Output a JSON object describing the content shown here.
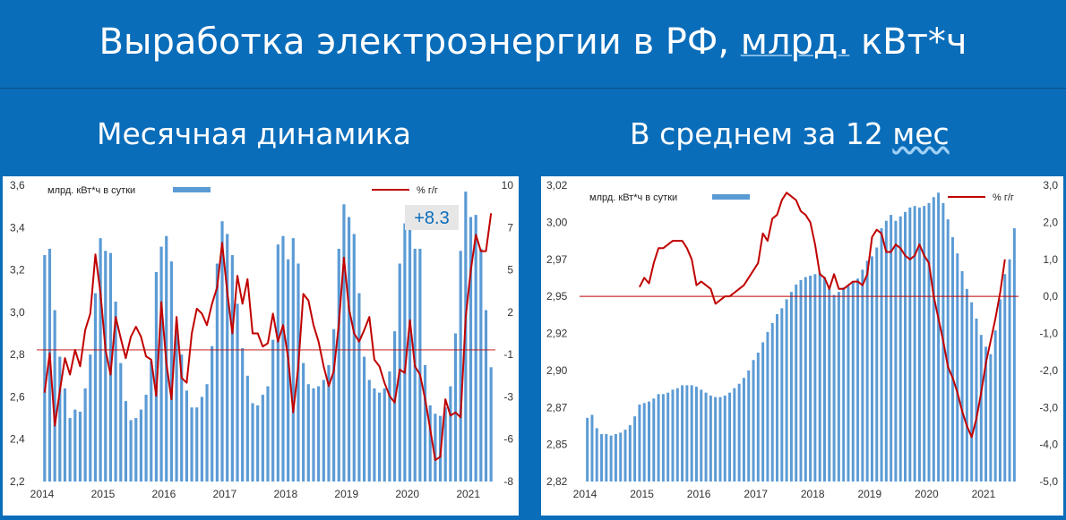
{
  "header": {
    "title_pre": "Выработка электроэнергии в РФ, ",
    "title_underlined": "млрд.",
    "title_post": " кВт*ч"
  },
  "panels": {
    "left_title": "Месячная динамика",
    "right_title_pre": "В среднем за 12 ",
    "right_title_wavy": "мес"
  },
  "colors": {
    "bars": "#5b9bd5",
    "line": "#c00000",
    "zero_line": "#c00000",
    "background": "#0a6dba",
    "badge": "#0a6dba"
  },
  "chart_data": [
    {
      "type": "bar",
      "title": "Месячная динамика",
      "badge": "+8.3",
      "x_tick_labels": [
        "2014",
        "2015",
        "2016",
        "2017",
        "2018",
        "2019",
        "2020",
        "2021"
      ],
      "y_left_ticks": [
        "3,6",
        "3,4",
        "3,2",
        "3,0",
        "2,8",
        "2,6",
        "2,4",
        "2,2"
      ],
      "y_right_ticks": [
        "10",
        "7",
        "5",
        "2",
        "-1",
        "-3",
        "-6",
        "-8"
      ],
      "ylim_left": [
        2.2,
        3.6
      ],
      "ylim_right": [
        -8,
        10
      ],
      "grid": false,
      "legend": "top",
      "series": [
        {
          "name": "млрд. кВт*ч в сутки",
          "kind": "bar",
          "axis": "left",
          "values": [
            3.27,
            3.3,
            3.01,
            2.79,
            2.64,
            2.5,
            2.54,
            2.53,
            2.64,
            2.8,
            3.09,
            3.35,
            3.29,
            3.28,
            3.05,
            2.76,
            2.58,
            2.49,
            2.5,
            2.54,
            2.61,
            2.77,
            3.19,
            3.31,
            3.36,
            3.24,
            2.91,
            2.8,
            2.63,
            2.55,
            2.55,
            2.6,
            2.66,
            2.84,
            3.23,
            3.43,
            3.37,
            3.27,
            3.04,
            2.83,
            2.7,
            2.57,
            2.56,
            2.61,
            2.65,
            2.87,
            3.32,
            3.36,
            3.25,
            3.35,
            3.23,
            2.76,
            2.66,
            2.64,
            2.65,
            2.68,
            2.75,
            2.92,
            3.3,
            3.51,
            3.45,
            3.37,
            3.09,
            2.79,
            2.68,
            2.64,
            2.62,
            2.64,
            2.72,
            2.91,
            3.23,
            3.42,
            3.4,
            3.3,
            3.3,
            2.75,
            2.56,
            2.52,
            2.51,
            2.55,
            2.65,
            2.9,
            3.29,
            3.57,
            3.45,
            3.46,
            3.3,
            3.01,
            2.74
          ]
        },
        {
          "name": "% г/г",
          "kind": "line",
          "axis": "right",
          "values": [
            -2.6,
            -0.2,
            -4.6,
            -2.5,
            -0.5,
            -1.5,
            0.0,
            -1.0,
            1.2,
            2.2,
            5.8,
            3.5,
            0.0,
            -1.5,
            2.0,
            0.7,
            -0.5,
            0.8,
            1.4,
            0.8,
            -0.4,
            -0.6,
            -2.8,
            2.9,
            -0.8,
            -3.0,
            2.0,
            -1.7,
            -2.0,
            1.0,
            2.5,
            2.2,
            1.5,
            2.8,
            3.8,
            6.5,
            3.5,
            1.0,
            4.5,
            2.8,
            4.3,
            1.0,
            1.0,
            0.2,
            0.4,
            2.2,
            0.5,
            1.5,
            -0.5,
            -3.8,
            -1.0,
            3.4,
            3.0,
            1.5,
            0.5,
            -1.0,
            -2.2,
            -1.3,
            1.6,
            5.6,
            2.5,
            1.0,
            0.5,
            1.2,
            2.0,
            -0.6,
            -1.0,
            -2.0,
            -2.8,
            -3.2,
            -1.2,
            -1.4,
            1.8,
            -1.0,
            -1.5,
            -3.0,
            -4.8,
            -6.7,
            -6.5,
            -3.0,
            -4.0,
            -3.8,
            -4.1,
            2.0,
            4.8,
            7.0,
            6.0,
            6.0,
            8.3
          ]
        }
      ]
    },
    {
      "type": "bar",
      "title": "В среднем за 12 мес",
      "x_tick_labels": [
        "2014",
        "2015",
        "2016",
        "2017",
        "2018",
        "2019",
        "2020",
        "2021"
      ],
      "y_left_ticks": [
        "3,02",
        "3,00",
        "2,97",
        "2,95",
        "2,92",
        "2,90",
        "2,87",
        "2,85",
        "2,82"
      ],
      "y_right_ticks": [
        "3,0",
        "2,0",
        "1,0",
        "0,0",
        "-1,0",
        "-2,0",
        "-3,0",
        "-4,0",
        "-5,0"
      ],
      "ylim_left": [
        2.82,
        3.02
      ],
      "ylim_right": [
        -5.0,
        3.0
      ],
      "grid": false,
      "legend": "top",
      "series": [
        {
          "name": "млрд. кВт*ч в сутки",
          "kind": "bar",
          "axis": "left",
          "values": [
            2.863,
            2.865,
            2.856,
            2.852,
            2.852,
            2.851,
            2.852,
            2.853,
            2.855,
            2.858,
            2.864,
            2.872,
            2.873,
            2.874,
            2.876,
            2.879,
            2.879,
            2.88,
            2.882,
            2.883,
            2.885,
            2.885,
            2.885,
            2.884,
            2.882,
            2.88,
            2.878,
            2.877,
            2.877,
            2.878,
            2.88,
            2.883,
            2.886,
            2.89,
            2.895,
            2.902,
            2.907,
            2.914,
            2.921,
            2.927,
            2.933,
            2.937,
            2.943,
            2.948,
            2.953,
            2.956,
            2.958,
            2.959,
            2.96,
            2.961,
            2.958,
            2.95,
            2.946,
            2.948,
            2.951,
            2.952,
            2.955,
            2.957,
            2.963,
            2.969,
            2.972,
            2.978,
            2.991,
            2.996,
            3.0,
            2.996,
            2.999,
            3.002,
            3.005,
            3.006,
            3.005,
            3.006,
            3.008,
            3.012,
            3.015,
            3.008,
            2.997,
            2.985,
            2.974,
            2.962,
            2.95,
            2.941,
            2.93,
            2.919,
            2.911,
            2.906,
            2.922,
            2.943,
            2.96,
            2.97,
            2.991
          ]
        },
        {
          "name": "% г/г",
          "kind": "line",
          "axis": "right",
          "values": [
            null,
            null,
            null,
            null,
            null,
            null,
            null,
            null,
            null,
            null,
            null,
            0.25,
            0.5,
            0.35,
            0.9,
            1.3,
            1.3,
            1.4,
            1.5,
            1.5,
            1.5,
            1.3,
            1.0,
            0.3,
            0.4,
            0.3,
            0.2,
            -0.2,
            -0.1,
            0.0,
            0.0,
            0.1,
            0.2,
            0.3,
            0.5,
            0.7,
            0.9,
            1.7,
            1.5,
            2.1,
            2.2,
            2.6,
            2.8,
            2.7,
            2.6,
            2.3,
            2.2,
            2.0,
            1.4,
            0.6,
            0.5,
            0.2,
            0.6,
            0.2,
            0.2,
            0.3,
            0.4,
            0.4,
            0.3,
            0.6,
            1.6,
            1.8,
            1.7,
            1.2,
            1.2,
            1.4,
            1.3,
            1.1,
            1.0,
            1.1,
            1.4,
            1.1,
            0.9,
            0.0,
            -0.6,
            -1.2,
            -1.9,
            -2.2,
            -2.6,
            -3.1,
            -3.5,
            -3.8,
            -3.3,
            -2.6,
            -1.8,
            -1.2,
            -0.6,
            0.1,
            1.0
          ]
        }
      ]
    }
  ]
}
